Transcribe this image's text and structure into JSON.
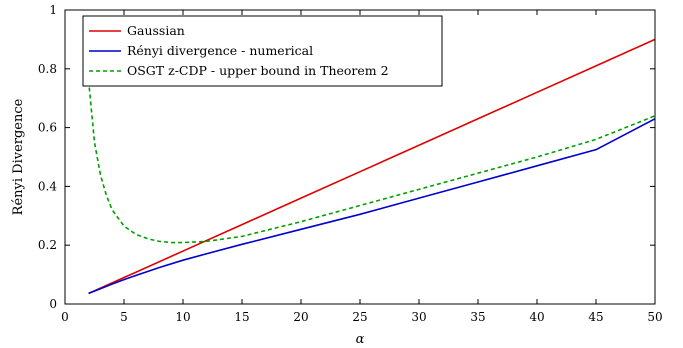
{
  "chart_data": {
    "type": "line",
    "title": "",
    "xlabel": "α",
    "ylabel": "Rényi Divergence",
    "xlim": [
      0,
      50
    ],
    "ylim": [
      0,
      1
    ],
    "xticks": [
      0,
      5,
      10,
      15,
      20,
      25,
      30,
      35,
      40,
      45,
      50
    ],
    "yticks": [
      0,
      0.2,
      0.4,
      0.6,
      0.8,
      1
    ],
    "ytick_labels": [
      "0",
      "0.2",
      "0.4",
      "0.6",
      "0.8",
      "1"
    ],
    "grid": false,
    "legend_position": "top-left",
    "series": [
      {
        "name": "Gaussian",
        "color": "#e00000",
        "dash": "solid",
        "x": [
          2,
          5,
          10,
          15,
          20,
          25,
          30,
          35,
          40,
          45,
          50
        ],
        "y": [
          0.036,
          0.09,
          0.18,
          0.27,
          0.36,
          0.45,
          0.54,
          0.63,
          0.72,
          0.81,
          0.9
        ]
      },
      {
        "name": "Rényi divergence - numerical",
        "color": "#0000cc",
        "dash": "solid",
        "x": [
          2,
          3,
          4,
          5,
          6,
          8,
          10,
          12,
          15,
          20,
          25,
          30,
          35,
          40,
          45,
          50
        ],
        "y": [
          0.036,
          0.052,
          0.068,
          0.083,
          0.097,
          0.124,
          0.149,
          0.171,
          0.203,
          0.254,
          0.305,
          0.36,
          0.415,
          0.47,
          0.525,
          0.63
        ]
      },
      {
        "name": "OSGT z-CDP - upper bound in Theorem 2",
        "color": "#00a000",
        "dash": "dashed",
        "x": [
          2,
          2.5,
          3,
          3.5,
          4,
          5,
          6,
          7,
          8,
          9,
          10,
          12,
          15,
          20,
          25,
          30,
          35,
          40,
          45,
          50
        ],
        "y": [
          0.76,
          0.55,
          0.44,
          0.37,
          0.32,
          0.265,
          0.237,
          0.222,
          0.213,
          0.209,
          0.209,
          0.213,
          0.23,
          0.28,
          0.335,
          0.39,
          0.445,
          0.5,
          0.56,
          0.64
        ]
      }
    ]
  }
}
